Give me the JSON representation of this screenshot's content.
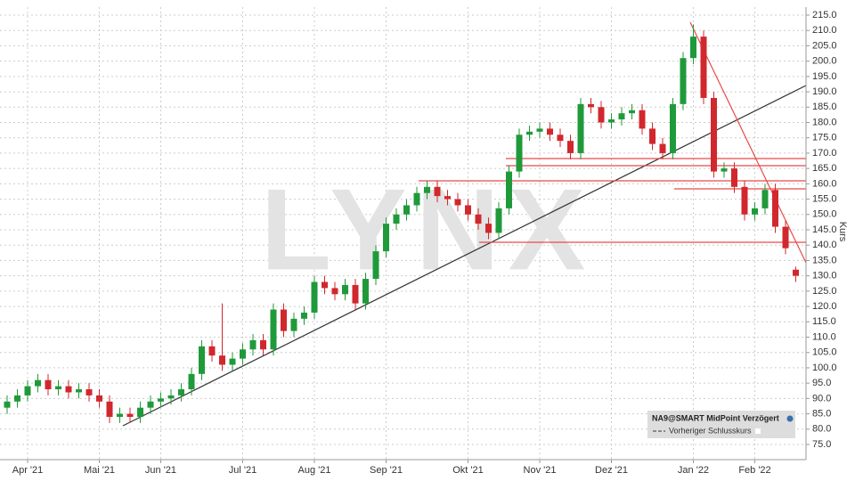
{
  "chart_data": {
    "type": "candlestick",
    "watermark": "LYNX",
    "y_label": "Kurs",
    "legend": {
      "series_name": "NA9@SMART MidPoint Verzögert",
      "reference": "Vorheriger Schlusskurs",
      "position": "lower right"
    },
    "up_color": "#1f9a3a",
    "down_color": "#d0282e",
    "grid": true,
    "categories": [
      null,
      null,
      "Apr '21",
      null,
      null,
      null,
      null,
      null,
      null,
      "Mai '21",
      null,
      null,
      null,
      null,
      null,
      "Jun '21",
      null,
      null,
      null,
      null,
      null,
      null,
      null,
      "Jul '21",
      null,
      null,
      null,
      null,
      null,
      null,
      "Aug '21",
      null,
      null,
      null,
      null,
      null,
      null,
      "Sep '21",
      null,
      null,
      null,
      null,
      null,
      null,
      null,
      "Okt '21",
      null,
      null,
      null,
      null,
      null,
      null,
      "Nov '21",
      null,
      null,
      null,
      null,
      null,
      null,
      "Dez '21",
      null,
      null,
      null,
      null,
      null,
      null,
      null,
      "Jan '22",
      null,
      null,
      null,
      null,
      null,
      "Feb '22",
      null,
      null,
      null,
      null
    ],
    "open": [
      87,
      89,
      91,
      94,
      96,
      93,
      94,
      92,
      93,
      91,
      89,
      84,
      85,
      84,
      87,
      89,
      90,
      91,
      93,
      98,
      107,
      104,
      101,
      103,
      106,
      109,
      106,
      119,
      112,
      116,
      118,
      128,
      126,
      124,
      127,
      121,
      129,
      138,
      147,
      150,
      153,
      157,
      159,
      156,
      155,
      153,
      150,
      147,
      144,
      152,
      164,
      176,
      177,
      178,
      176,
      174,
      170,
      186,
      185,
      180,
      181,
      183,
      184,
      178,
      173,
      170,
      186,
      201,
      208,
      188,
      164,
      165,
      159,
      150,
      152,
      158,
      146,
      132
    ],
    "high": [
      91,
      93,
      96,
      98,
      98,
      96,
      96,
      95,
      95,
      93,
      91,
      87,
      87,
      89,
      91,
      92,
      93,
      95,
      100,
      109,
      109,
      121,
      105,
      108,
      111,
      111,
      121,
      121,
      118,
      120,
      130,
      130,
      128,
      129,
      129,
      131,
      140,
      149,
      152,
      155,
      159,
      161,
      161,
      158,
      157,
      155,
      152,
      149,
      154,
      166,
      178,
      179,
      180,
      180,
      178,
      176,
      188,
      188,
      187,
      183,
      185,
      186,
      186,
      180,
      175,
      188,
      203,
      212,
      210,
      190,
      167,
      167,
      161,
      154,
      160,
      160,
      148,
      133
    ],
    "low": [
      85,
      87,
      89,
      92,
      91,
      91,
      90,
      90,
      89,
      87,
      82,
      82,
      82,
      82,
      85,
      87,
      88,
      89,
      91,
      96,
      102,
      99,
      99,
      101,
      104,
      104,
      104,
      110,
      110,
      114,
      116,
      124,
      122,
      122,
      119,
      119,
      127,
      136,
      145,
      148,
      151,
      155,
      154,
      153,
      151,
      148,
      145,
      142,
      142,
      150,
      162,
      174,
      175,
      174,
      172,
      168,
      168,
      183,
      178,
      178,
      179,
      181,
      176,
      171,
      168,
      168,
      184,
      199,
      186,
      162,
      162,
      157,
      148,
      148,
      150,
      144,
      137,
      128
    ],
    "close": [
      89,
      91,
      94,
      96,
      93,
      94,
      92,
      93,
      91,
      89,
      84,
      85,
      84,
      87,
      89,
      90,
      91,
      93,
      98,
      107,
      104,
      101,
      103,
      106,
      109,
      106,
      119,
      112,
      116,
      118,
      128,
      126,
      124,
      127,
      121,
      129,
      138,
      147,
      150,
      153,
      157,
      159,
      156,
      155,
      153,
      150,
      147,
      144,
      152,
      164,
      176,
      177,
      178,
      176,
      174,
      170,
      186,
      185,
      180,
      181,
      183,
      184,
      178,
      173,
      170,
      186,
      201,
      208,
      188,
      164,
      165,
      159,
      150,
      152,
      158,
      146,
      139,
      130
    ],
    "ylim": [
      75,
      215
    ],
    "yticks": [
      {
        "value": 75,
        "label": "75.0"
      },
      {
        "value": 80,
        "label": "80.0"
      },
      {
        "value": 85,
        "label": "85.0"
      },
      {
        "value": 90,
        "label": "90.0"
      },
      {
        "value": 95,
        "label": "95.0"
      },
      {
        "value": 100,
        "label": "100.0"
      },
      {
        "value": 105,
        "label": "105.0"
      },
      {
        "value": 110,
        "label": "110.0"
      },
      {
        "value": 115,
        "label": "115.0"
      },
      {
        "value": 120,
        "label": "120.0"
      },
      {
        "value": 125,
        "label": "125.0"
      },
      {
        "value": 130,
        "label": "130.0"
      },
      {
        "value": 135,
        "label": "135.0"
      },
      {
        "value": 140,
        "label": "140.0"
      },
      {
        "value": 145,
        "label": "145.0"
      },
      {
        "value": 150,
        "label": "150.0"
      },
      {
        "value": 155,
        "label": "155.0"
      },
      {
        "value": 160,
        "label": "160.0"
      },
      {
        "value": 165,
        "label": "165.0"
      },
      {
        "value": 170,
        "label": "170.0"
      },
      {
        "value": 175,
        "label": "175.0"
      },
      {
        "value": 180,
        "label": "180.0"
      },
      {
        "value": 185,
        "label": "185.0"
      },
      {
        "value": 190,
        "label": "190.0"
      },
      {
        "value": 195,
        "label": "195.0"
      },
      {
        "value": 200,
        "label": "200.0"
      },
      {
        "value": 205,
        "label": "205.0"
      },
      {
        "value": 210,
        "label": "210.0"
      },
      {
        "value": 215,
        "label": "215.0"
      }
    ]
  }
}
